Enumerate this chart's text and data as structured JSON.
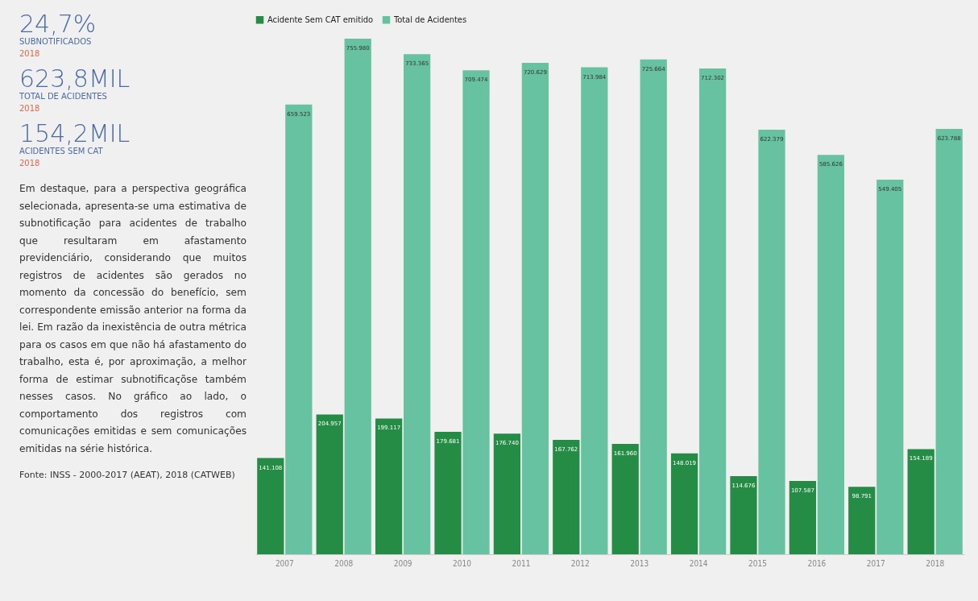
{
  "chart_data": {
    "type": "bar",
    "categories": [
      "2007",
      "2008",
      "2009",
      "2010",
      "2011",
      "2012",
      "2013",
      "2014",
      "2015",
      "2016",
      "2017",
      "2018"
    ],
    "series": [
      {
        "name": "Acidente Sem CAT emitido",
        "color": "#258c45",
        "values": [
          141108,
          204957,
          199117,
          179681,
          176740,
          167762,
          161960,
          148019,
          114676,
          107587,
          98791,
          154189
        ],
        "value_labels": [
          "141.108",
          "204.957",
          "199.117",
          "179.681",
          "176.740",
          "167.762",
          "161.960",
          "148.019",
          "114.676",
          "107.587",
          "98.791",
          "154.189"
        ]
      },
      {
        "name": "Total de Acidentes",
        "color": "#66c2a0",
        "values": [
          659523,
          755980,
          733365,
          709474,
          720629,
          713984,
          725664,
          712302,
          622379,
          585626,
          549405,
          623788
        ],
        "value_labels": [
          "659.523",
          "755.980",
          "733.365",
          "709.474",
          "720.629",
          "713.984",
          "725.664",
          "712.302",
          "622.379",
          "585.626",
          "549.405",
          "623.788"
        ]
      }
    ],
    "legend": "top",
    "grid": false,
    "annotations": [
      "24,7%",
      "SUBNOTIFICADOS",
      "2018",
      "623,8MIL",
      "TOTAL DE ACIDENTES",
      "2018",
      "154,2MIL",
      "ACIDENTES SEM CAT",
      "2018",
      "Em destaque, para a perspectiva geográfica selecionada, apresenta-se uma estimativa de subnotificação para acidentes de trabalho que resultaram em afastamento previdenciário, considerando que muitos registros de acidentes são gerados no momento da concessão do benefício, sem correspondente emissão anterior na forma da lei. Em razão da inexistência de outra métrica para os casos em que não há afastamento do trabalho, esta é, por aproximação, a melhor forma de estimar subnotificaçõse também nesses casos. No gráfico ao lado, o comportamento dos registros com comunicações emitidas e sem comunicações emitidas na série histórica.",
      "Fonte: INSS - 2000-2017 (AEAT), 2018 (CATWEB)"
    ]
  }
}
